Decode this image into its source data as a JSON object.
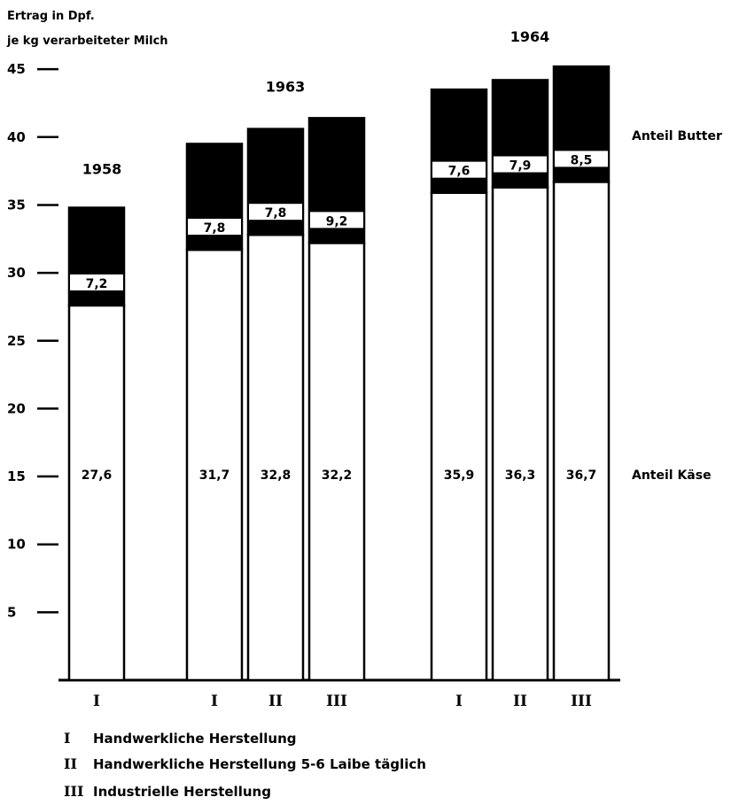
{
  "chart_data": {
    "type": "bar",
    "stacked": true,
    "ylabel_line1": "Ertrag in Dpf.",
    "ylabel_line2": "je kg verarbeiteter Milch",
    "yticks": [
      5,
      10,
      15,
      20,
      25,
      30,
      35,
      40,
      45
    ],
    "ytick_labels": [
      "5",
      "10",
      "15",
      "20",
      "25",
      "30",
      "35",
      "40",
      "45"
    ],
    "ylim": [
      0,
      45
    ],
    "series_labels": {
      "cheese": "Anteil Käse",
      "butter": "Anteil Butter"
    },
    "groups": [
      {
        "year": "1958",
        "bars": [
          {
            "category": "I",
            "cheese": 27.6,
            "cheese_label": "27,6",
            "butter": 7.2,
            "butter_label": "7,2"
          }
        ]
      },
      {
        "year": "1963",
        "bars": [
          {
            "category": "I",
            "cheese": 31.7,
            "cheese_label": "31,7",
            "butter": 7.8,
            "butter_label": "7,8"
          },
          {
            "category": "II",
            "cheese": 32.8,
            "cheese_label": "32,8",
            "butter": 7.8,
            "butter_label": "7,8"
          },
          {
            "category": "III",
            "cheese": 32.2,
            "cheese_label": "32,2",
            "butter": 9.2,
            "butter_label": "9,2"
          }
        ]
      },
      {
        "year": "1964",
        "bars": [
          {
            "category": "I",
            "cheese": 35.9,
            "cheese_label": "35,9",
            "butter": 7.6,
            "butter_label": "7,6"
          },
          {
            "category": "II",
            "cheese": 36.3,
            "cheese_label": "36,3",
            "butter": 7.9,
            "butter_label": "7,9"
          },
          {
            "category": "III",
            "cheese": 36.7,
            "cheese_label": "36,7",
            "butter": 8.5,
            "butter_label": "8,5"
          }
        ]
      }
    ],
    "legend": [
      {
        "num": "I",
        "text": "Handwerkliche Herstellung"
      },
      {
        "num": "II",
        "text": "Handwerkliche Herstellung 5-6 Laibe täglich"
      },
      {
        "num": "III",
        "text": "Industrielle Herstellung"
      }
    ]
  }
}
